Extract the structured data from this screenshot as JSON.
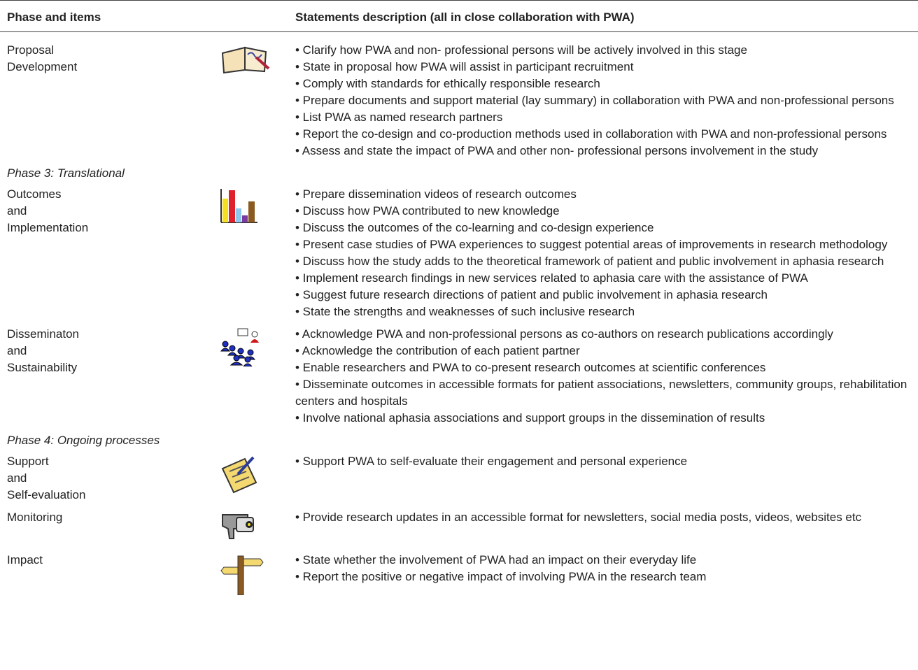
{
  "table": {
    "header": [
      "Phase and items",
      "Statements description (all in close collaboration with PWA)"
    ],
    "rows": [
      {
        "item": [
          "Proposal",
          "Development"
        ],
        "statements": [
          "• Clarify how PWA and non- professional persons will be actively involved in this stage",
          "• State in proposal how PWA will assist in participant recruitment",
          "• Comply with standards for ethically responsible research",
          "• Prepare documents and support material (lay summary) in collaboration with PWA and non-professional persons",
          "• List PWA as named research partners",
          "• Report the co-design and co-production methods used in collaboration with PWA and non-professional persons",
          "• Assess and state the impact of PWA and other non- professional persons involvement in the study"
        ]
      },
      {
        "phase": "Phase 3: Translational"
      },
      {
        "item": [
          "Outcomes",
          "and",
          "Implementation"
        ],
        "statements": [
          "• Prepare dissemination videos of research outcomes",
          "• Discuss how PWA contributed to new knowledge",
          "• Discuss the outcomes of the co-learning and co-design experience",
          "• Present case studies of PWA experiences to suggest potential areas of improvements in research methodology",
          "• Discuss how the study adds to the theoretical framework of patient and public involvement in aphasia research",
          "• Implement research findings in new services related to aphasia care with the assistance of PWA",
          "• Suggest future research directions of patient and public involvement in aphasia research",
          "• State the strengths and weaknesses of such inclusive research"
        ]
      },
      {
        "item": [
          "Disseminaton",
          "and",
          "Sustainability"
        ],
        "statements": [
          "• Acknowledge PWA and non-professional persons as co-authors on research publications accordingly",
          "• Acknowledge the contribution of each patient partner",
          "• Enable researchers and PWA to co-present research outcomes at scientific conferences",
          "• Disseminate outcomes in accessible formats for patient associations, newsletters, community groups, rehabilitation centers and hospitals",
          "• Involve national aphasia associations and support groups in the dissemination of results"
        ]
      },
      {
        "phase": "Phase 4: Ongoing processes"
      },
      {
        "item": [
          "Support",
          "and",
          "Self-evaluation"
        ],
        "statements": [
          "• Support PWA to self-evaluate their engagement and personal experience"
        ]
      },
      {
        "item": [
          "Monitoring"
        ],
        "statements": [
          "• Provide research updates in an accessible format for newsletters, social media posts, videos, websites etc"
        ]
      },
      {
        "item": [
          "Impact"
        ],
        "statements": [
          "• State whether the involvement of PWA had an impact on their everyday life",
          "• Report the positive or negative impact of involving PWA in the research team"
        ]
      }
    ]
  }
}
